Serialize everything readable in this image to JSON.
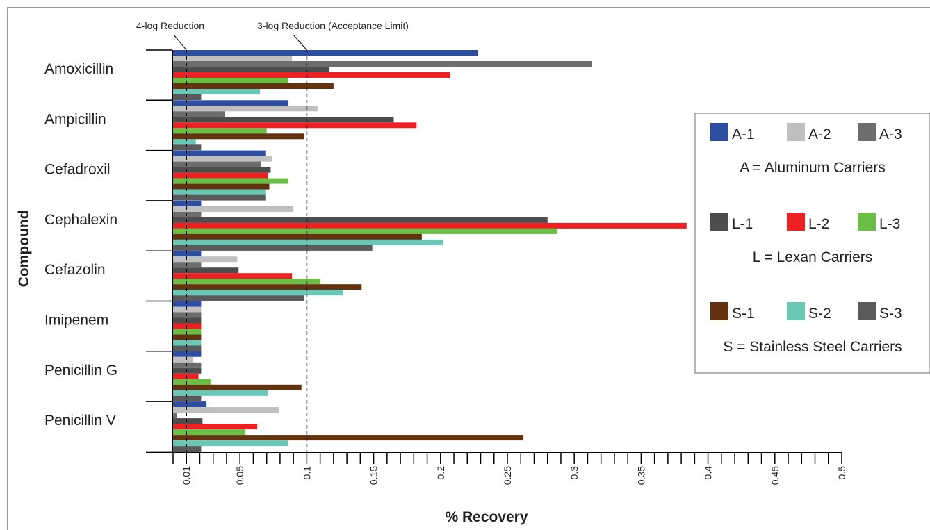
{
  "chart_data": {
    "type": "bar",
    "orientation": "horizontal",
    "xlabel": "% Recovery",
    "ylabel": "Compound",
    "xlim": [
      0,
      0.5
    ],
    "x_tick_labels": [
      "0.01",
      "0.05",
      "0.1",
      "0.15",
      "0.2",
      "0.25",
      "0.3",
      "0.35",
      "0.4",
      "0.45",
      "0.5"
    ],
    "x_tick_values": [
      0.01,
      0.05,
      0.1,
      0.15,
      0.2,
      0.25,
      0.3,
      0.35,
      0.4,
      0.45,
      0.5
    ],
    "categories": [
      "Amoxicillin",
      "Ampicillin",
      "Cefadroxil",
      "Cephalexin",
      "Cefazolin",
      "Imipenem",
      "Penicillin G",
      "Penicillin V"
    ],
    "reference_lines": [
      {
        "label": "4-log Reduction",
        "value": 0.01
      },
      {
        "label": "3-log Reduction (Acceptance Limit)",
        "value": 0.1
      }
    ],
    "series": [
      {
        "name": "A-1",
        "color": "#2e4ea1",
        "values": [
          0.228,
          0.086,
          0.069,
          0.021,
          0.021,
          0.021,
          0.021,
          0.025
        ]
      },
      {
        "name": "A-2",
        "color": "#bfbfbf",
        "values": [
          0.089,
          0.108,
          0.074,
          0.09,
          0.048,
          0.021,
          0.015,
          0.079
        ]
      },
      {
        "name": "A-3",
        "color": "#6d6d6d",
        "values": [
          0.313,
          0.039,
          0.066,
          0.021,
          0.021,
          0.021,
          0.021,
          0.003
        ]
      },
      {
        "name": "L-1",
        "color": "#4d4d4d",
        "values": [
          0.117,
          0.165,
          0.073,
          0.28,
          0.049,
          0.021,
          0.021,
          0.022
        ]
      },
      {
        "name": "L-2",
        "color": "#ed2124",
        "values": [
          0.207,
          0.182,
          0.071,
          0.384,
          0.089,
          0.021,
          0.019,
          0.063
        ]
      },
      {
        "name": "L-3",
        "color": "#6abd45",
        "values": [
          0.086,
          0.07,
          0.086,
          0.287,
          0.11,
          0.021,
          0.028,
          0.054
        ]
      },
      {
        "name": "S-1",
        "color": "#63330f",
        "values": [
          0.12,
          0.098,
          0.072,
          0.186,
          0.141,
          0.021,
          0.096,
          0.262
        ]
      },
      {
        "name": "S-2",
        "color": "#6ac7b5",
        "values": [
          0.065,
          0.017,
          0.069,
          0.202,
          0.127,
          0.021,
          0.071,
          0.086
        ]
      },
      {
        "name": "S-3",
        "color": "#5a5a5a",
        "values": [
          0.021,
          0.021,
          0.069,
          0.149,
          0.098,
          0.021,
          0.021,
          0.021
        ]
      }
    ],
    "legend": {
      "position": "right",
      "groups": [
        {
          "items": [
            "A-1",
            "A-2",
            "A-3"
          ],
          "caption": "A = Aluminum Carriers"
        },
        {
          "items": [
            "L-1",
            "L-2",
            "L-3"
          ],
          "caption": "L = Lexan Carriers"
        },
        {
          "items": [
            "S-1",
            "S-2",
            "S-3"
          ],
          "caption": "S = Stainless Steel Carriers"
        }
      ]
    },
    "grid": false
  }
}
